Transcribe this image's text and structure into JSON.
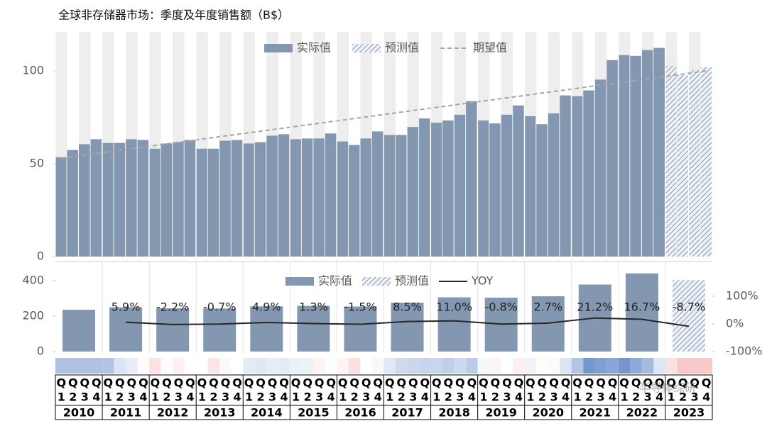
{
  "chart_data": [
    {
      "type": "bar",
      "title": "全球非存储器市场：季度及年度销售额（B$）",
      "years": [
        "2010",
        "2011",
        "2012",
        "2013",
        "2014",
        "2015",
        "2016",
        "2017",
        "2018",
        "2019",
        "2020",
        "2021",
        "2022",
        "2023"
      ],
      "quarter_letter": "Q",
      "quarter_numbers": [
        "1",
        "2",
        "3",
        "4"
      ],
      "ylim": [
        0,
        121
      ],
      "yticks": [
        0,
        50,
        100
      ],
      "series": [
        {
          "name": "实际值",
          "color": "#8497b0",
          "values": [
            53.5,
            57.4,
            60.5,
            63.2,
            61.2,
            61.2,
            63.2,
            62.8,
            58.1,
            60.9,
            61.6,
            62.8,
            58.1,
            58.1,
            62.4,
            62.8,
            60.9,
            61.6,
            65.1,
            65.9,
            63.2,
            63.6,
            63.6,
            66.3,
            62.0,
            60.1,
            63.6,
            67.4,
            65.5,
            65.5,
            69.8,
            74.4,
            72.1,
            73.3,
            76.4,
            83.7,
            73.3,
            71.7,
            76.4,
            81.4,
            75.6,
            71.3,
            77.1,
            86.8,
            86.4,
            89.5,
            95.3,
            105.8,
            108.5,
            108.1,
            111.2,
            112.4,
            null,
            null,
            null,
            null
          ]
        },
        {
          "name": "预测值",
          "color": "#8497b0",
          "hatched": true,
          "values": [
            null,
            null,
            null,
            null,
            null,
            null,
            null,
            null,
            null,
            null,
            null,
            null,
            null,
            null,
            null,
            null,
            null,
            null,
            null,
            null,
            null,
            null,
            null,
            null,
            null,
            null,
            null,
            null,
            null,
            null,
            null,
            null,
            null,
            null,
            null,
            null,
            null,
            null,
            null,
            null,
            null,
            null,
            null,
            null,
            null,
            null,
            null,
            null,
            null,
            null,
            null,
            null,
            102.7,
            97.7,
            100.4,
            101.9
          ]
        },
        {
          "name": "期望值",
          "type": "line",
          "dashed": true,
          "color": "#a6a6a6",
          "values": [
            53.0,
            53.9,
            54.7,
            55.6,
            56.4,
            57.3,
            58.1,
            59.0,
            59.8,
            60.7,
            61.6,
            62.4,
            63.3,
            64.1,
            65.0,
            65.8,
            66.7,
            67.5,
            68.4,
            69.2,
            70.1,
            71.0,
            71.8,
            72.7,
            73.5,
            74.4,
            75.2,
            76.1,
            76.9,
            77.8,
            78.7,
            79.5,
            80.4,
            81.2,
            82.1,
            82.9,
            83.8,
            84.6,
            85.5,
            86.3,
            87.2,
            88.1,
            88.9,
            89.8,
            90.6,
            91.5,
            92.3,
            93.2,
            94.0,
            94.9,
            95.8,
            96.6,
            97.5,
            98.3,
            99.2,
            100.0
          ]
        }
      ],
      "watermark": "半导体综研"
    },
    {
      "type": "bar",
      "categories": [
        "2010",
        "2011",
        "2012",
        "2013",
        "2014",
        "2015",
        "2016",
        "2017",
        "2018",
        "2019",
        "2020",
        "2021",
        "2022",
        "2023"
      ],
      "ylim": [
        0,
        484
      ],
      "yticks": [
        0,
        200,
        400
      ],
      "y2lim": [
        -100,
        210
      ],
      "y2ticks": [
        {
          "value": -100,
          "label": "-100%"
        },
        {
          "value": 0,
          "label": "0%"
        },
        {
          "value": 100,
          "label": "100%"
        }
      ],
      "series": [
        {
          "name": "实际值",
          "color": "#8497b0",
          "values": [
            236,
            250,
            244,
            243,
            255,
            258,
            254,
            276,
            306,
            304,
            312,
            378,
            441,
            null
          ]
        },
        {
          "name": "预测值",
          "color": "#8497b0",
          "hatched": true,
          "values": [
            null,
            null,
            null,
            null,
            null,
            null,
            null,
            null,
            null,
            null,
            null,
            null,
            null,
            403
          ]
        },
        {
          "name": "YOY",
          "type": "line",
          "axis": "y2",
          "color": "#262626",
          "values": [
            null,
            5.9,
            -2.2,
            -0.7,
            4.9,
            1.3,
            -1.5,
            8.5,
            11.0,
            -0.8,
            2.7,
            21.2,
            16.7,
            -8.7
          ],
          "value_labels": [
            null,
            "5.9%",
            "-2.2%",
            "-0.7%",
            "4.9%",
            "1.3%",
            "-1.5%",
            "8.5%",
            "11.0%",
            "-0.8%",
            "2.7%",
            "21.2%",
            "16.7%",
            "-8.7%"
          ]
        }
      ]
    }
  ]
}
